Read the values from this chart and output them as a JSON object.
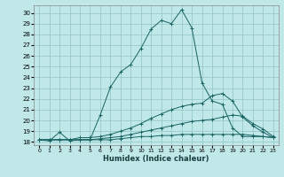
{
  "xlabel": "Humidex (Indice chaleur)",
  "bg_color": "#c0e8e8",
  "grid_color": "#90c4c4",
  "line_color": "#1a6464",
  "x_ticks": [
    0,
    1,
    2,
    3,
    4,
    5,
    6,
    7,
    8,
    9,
    10,
    11,
    12,
    13,
    14,
    15,
    16,
    17,
    18,
    19,
    20,
    21,
    22,
    23
  ],
  "y_ticks": [
    18,
    19,
    20,
    21,
    22,
    23,
    24,
    25,
    26,
    27,
    28,
    29,
    30
  ],
  "ylim": [
    17.7,
    30.7
  ],
  "xlim": [
    -0.5,
    23.5
  ],
  "line1_x": [
    0,
    1,
    2,
    3,
    4,
    5,
    6,
    7,
    8,
    9,
    10,
    11,
    12,
    13,
    14,
    15,
    16,
    17,
    18,
    19,
    20,
    21,
    22,
    23
  ],
  "line1_y": [
    18.2,
    18.1,
    18.9,
    18.1,
    18.2,
    18.2,
    20.5,
    23.1,
    24.5,
    25.2,
    26.7,
    28.5,
    29.3,
    29.0,
    30.3,
    28.6,
    23.5,
    21.8,
    21.5,
    19.3,
    18.5,
    18.5,
    18.5,
    18.4
  ],
  "line2_x": [
    0,
    1,
    2,
    3,
    4,
    5,
    6,
    7,
    8,
    9,
    10,
    11,
    12,
    13,
    14,
    15,
    16,
    17,
    18,
    19,
    20,
    21,
    22,
    23
  ],
  "line2_y": [
    18.2,
    18.2,
    18.2,
    18.2,
    18.4,
    18.4,
    18.5,
    18.7,
    19.0,
    19.3,
    19.7,
    20.2,
    20.6,
    21.0,
    21.3,
    21.5,
    21.6,
    22.3,
    22.5,
    21.8,
    20.3,
    19.5,
    18.9,
    18.4
  ],
  "line3_x": [
    0,
    1,
    2,
    3,
    4,
    5,
    6,
    7,
    8,
    9,
    10,
    11,
    12,
    13,
    14,
    15,
    16,
    17,
    18,
    19,
    20,
    21,
    22,
    23
  ],
  "line3_y": [
    18.2,
    18.2,
    18.2,
    18.2,
    18.2,
    18.2,
    18.3,
    18.4,
    18.5,
    18.7,
    18.9,
    19.1,
    19.3,
    19.5,
    19.7,
    19.9,
    20.0,
    20.1,
    20.3,
    20.5,
    20.4,
    19.7,
    19.2,
    18.5
  ],
  "line4_x": [
    0,
    1,
    2,
    3,
    4,
    5,
    6,
    7,
    8,
    9,
    10,
    11,
    12,
    13,
    14,
    15,
    16,
    17,
    18,
    19,
    20,
    21,
    22,
    23
  ],
  "line4_y": [
    18.2,
    18.2,
    18.2,
    18.2,
    18.2,
    18.2,
    18.2,
    18.2,
    18.3,
    18.4,
    18.5,
    18.5,
    18.6,
    18.6,
    18.7,
    18.7,
    18.7,
    18.7,
    18.7,
    18.7,
    18.7,
    18.6,
    18.5,
    18.4
  ]
}
